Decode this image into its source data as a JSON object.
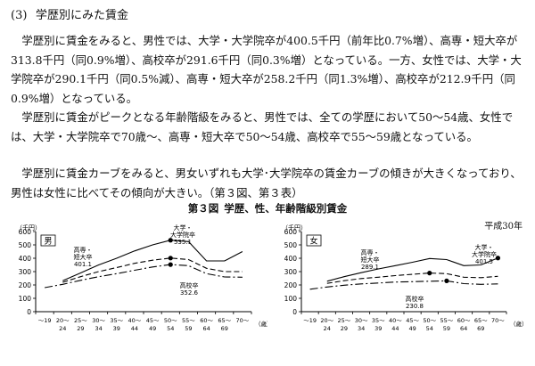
{
  "section": {
    "number": "(3)",
    "title": "学歴別にみた賃金"
  },
  "paragraphs": [
    "学歴別に賃金をみると、男性では、大学・大学院卒が400.5千円（前年比0.7%増）、高専・短大卒が313.8千円（同0.9%増）、高校卒が291.6千円（同0.3%増）となっている。一方、女性では、大学・大学院卒が290.1千円（同0.5%減）、高専・短大卒が258.2千円（同1.3%増）、高校卒が212.9千円（同0.9%増）となっている。",
    "学歴別に賃金がピークとなる年齢階級をみると、男性では、全ての学歴において50～54歳、女性では、大学・大学院卒で70歳～、高専・短大卒で50～54歳、高校卒で55～59歳となっている。",
    "学歴別に賃金カーブをみると、男女いずれも大学･大学院卒の賃金カーブの傾きが大きくなっており、男性は女性に比べてその傾向が大きい。（第３図、第３表）"
  ],
  "figure": {
    "label": "第３図",
    "title": "学歴、性、年齢階級別賃金",
    "note": "平成30年"
  },
  "chart_data": [
    {
      "type": "line",
      "panel_label": "男",
      "y_unit": "（千円）",
      "ylim": [
        0,
        600
      ],
      "yticks": [
        0,
        100,
        200,
        300,
        400,
        500,
        600
      ],
      "x_tick_top": [
        "～19",
        "20～",
        "25～",
        "30～",
        "35～",
        "40～",
        "45～",
        "50～",
        "55～",
        "60～",
        "65～",
        "70～"
      ],
      "x_tick_bottom": [
        "",
        "24",
        "29",
        "34",
        "39",
        "44",
        "49",
        "54",
        "59",
        "64",
        "69",
        ""
      ],
      "x_unit": "（歳）",
      "series": [
        {
          "key": "univ",
          "values": [
            null,
            232,
            290,
            350,
            400,
            455,
            500,
            535.1,
            525,
            380,
            380,
            450
          ],
          "dash": "",
          "peak_index": 7,
          "peak_value": 535.1
        },
        {
          "key": "junior",
          "values": [
            null,
            220,
            262,
            300,
            330,
            362,
            385,
            401.1,
            390,
            325,
            300,
            300
          ],
          "dash": "6,3",
          "peak_index": 7,
          "peak_value": 401.1
        },
        {
          "key": "high",
          "values": [
            180,
            205,
            235,
            262,
            285,
            310,
            335,
            352.6,
            345,
            285,
            260,
            258
          ],
          "dash": "9,3,2,3",
          "peak_index": 7,
          "peak_value": 352.6
        }
      ],
      "annotations": [
        {
          "lines": [
            "大学・",
            "大学院卒",
            "535.1"
          ]
        },
        {
          "lines": [
            "高専・",
            "短大卒",
            "401.1"
          ]
        },
        {
          "lines": [
            "高校卒",
            "352.6"
          ]
        }
      ]
    },
    {
      "type": "line",
      "panel_label": "女",
      "y_unit": "（千円）",
      "ylim": [
        0,
        600
      ],
      "yticks": [
        0,
        100,
        200,
        300,
        400,
        500,
        600
      ],
      "x_tick_top": [
        "～19",
        "20～",
        "25～",
        "30～",
        "35～",
        "40～",
        "45～",
        "50～",
        "55～",
        "60～",
        "65～",
        "70～"
      ],
      "x_tick_bottom": [
        "",
        "24",
        "29",
        "34",
        "39",
        "44",
        "49",
        "54",
        "59",
        "64",
        "69",
        ""
      ],
      "x_unit": "（歳）",
      "series": [
        {
          "key": "univ",
          "values": [
            null,
            228,
            262,
            292,
            320,
            345,
            370,
            398,
            390,
            345,
            350,
            401.5
          ],
          "dash": "",
          "peak_index": 11,
          "peak_value": 401.5
        },
        {
          "key": "junior",
          "values": [
            null,
            212,
            232,
            248,
            258,
            270,
            280,
            289.1,
            285,
            258,
            255,
            265
          ],
          "dash": "6,3",
          "peak_index": 7,
          "peak_value": 289.1
        },
        {
          "key": "high",
          "values": [
            168,
            185,
            198,
            208,
            215,
            222,
            225,
            228,
            230.8,
            210,
            205,
            208
          ],
          "dash": "9,3,2,3",
          "peak_index": 8,
          "peak_value": 230.8
        }
      ],
      "annotations": [
        {
          "lines": [
            "大学・",
            "大学院卒",
            "401.5"
          ]
        },
        {
          "lines": [
            "高専・",
            "短大卒",
            "289.1"
          ]
        },
        {
          "lines": [
            "高校卒",
            "230.8"
          ]
        }
      ]
    }
  ]
}
